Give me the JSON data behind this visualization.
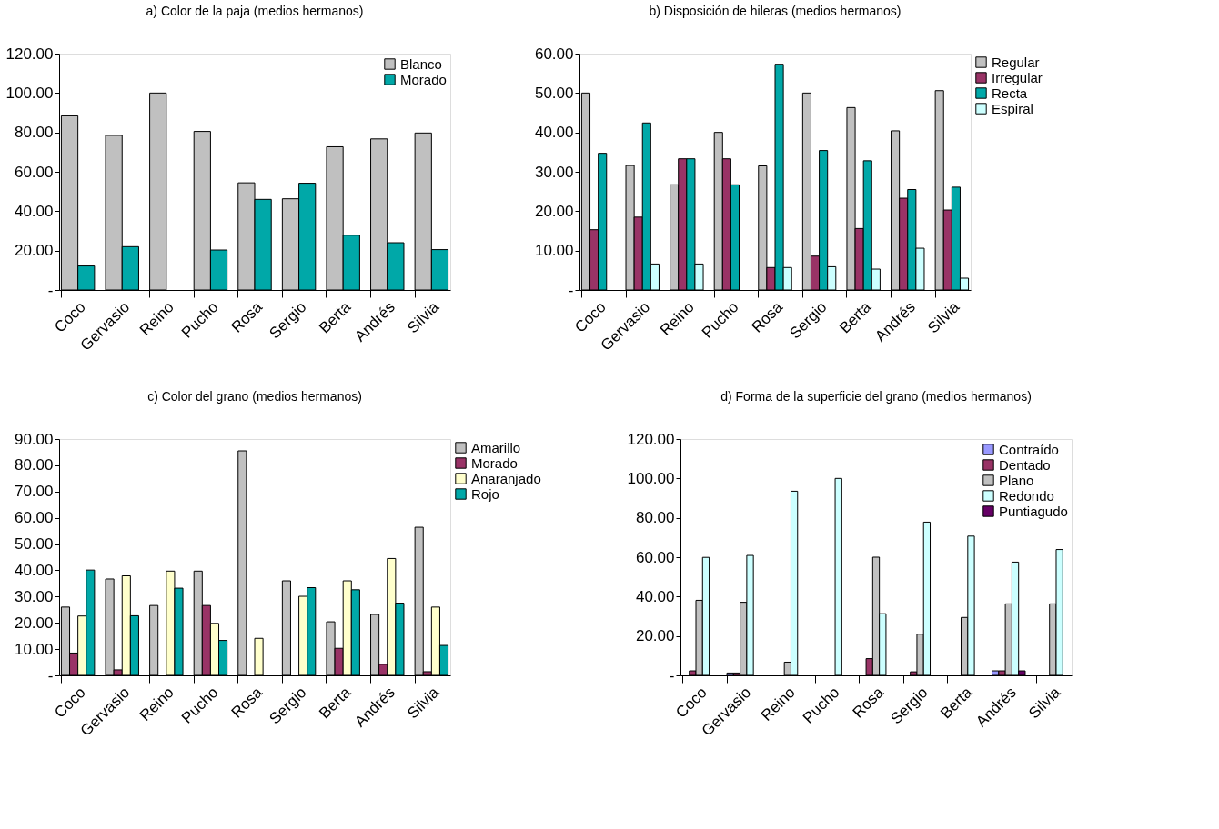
{
  "chart_data": [
    {
      "type": "bar",
      "title": "a) Color de la paja (medios hermanos)",
      "categories": [
        "Coco",
        "Gervasio",
        "Reino",
        "Pucho",
        "Rosa",
        "Sergio",
        "Berta",
        "Andrés",
        "Silvia"
      ],
      "ylim": [
        0,
        120
      ],
      "yticks": [
        {
          "value": 0,
          "label": "-"
        },
        {
          "value": 20,
          "label": "20.00"
        },
        {
          "value": 40,
          "label": "40.00"
        },
        {
          "value": 60,
          "label": "60.00"
        },
        {
          "value": 80,
          "label": "80.00"
        },
        {
          "value": 100,
          "label": "100.00"
        },
        {
          "value": 120,
          "label": "120.00"
        }
      ],
      "legend": "top right",
      "grid": false,
      "series": [
        {
          "name": "Blanco",
          "color": "#c0c0c0",
          "values": [
            88.4,
            78.5,
            100,
            80.5,
            54.4,
            46.3,
            72.7,
            76.7,
            79.7
          ]
        },
        {
          "name": "Morado",
          "color": "#00a8a8",
          "values": [
            12.2,
            22,
            0,
            20.3,
            46,
            54.2,
            27.8,
            24,
            20.5
          ]
        }
      ]
    },
    {
      "type": "bar",
      "title": "b) Disposición de hileras (medios hermanos)",
      "categories": [
        "Coco",
        "Gervasio",
        "Reino",
        "Pucho",
        "Rosa",
        "Sergio",
        "Berta",
        "Andrés",
        "Silvia"
      ],
      "ylim": [
        0,
        60
      ],
      "yticks": [
        {
          "value": 0,
          "label": "-"
        },
        {
          "value": 10,
          "label": "10.00"
        },
        {
          "value": 20,
          "label": "20.00"
        },
        {
          "value": 30,
          "label": "30.00"
        },
        {
          "value": 40,
          "label": "40.00"
        },
        {
          "value": 50,
          "label": "50.00"
        },
        {
          "value": 60,
          "label": "60.00"
        }
      ],
      "legend": "right",
      "grid": false,
      "series": [
        {
          "name": "Regular",
          "color": "#c0c0c0",
          "values": [
            50,
            31.6,
            26.7,
            40,
            31.5,
            50,
            46.3,
            40.4,
            50.6
          ]
        },
        {
          "name": "Irregular",
          "color": "#993366",
          "values": [
            15.3,
            18.5,
            33.3,
            33.3,
            5.7,
            8.6,
            15.6,
            23.3,
            20.3
          ]
        },
        {
          "name": "Recta",
          "color": "#00a8a8",
          "values": [
            34.7,
            42.4,
            33.3,
            26.7,
            57.3,
            35.4,
            32.8,
            25.5,
            26.1
          ]
        },
        {
          "name": "Espiral",
          "color": "#ccffff",
          "values": [
            0,
            6.6,
            6.6,
            0,
            5.7,
            5.9,
            5.3,
            10.6,
            3
          ]
        }
      ]
    },
    {
      "type": "bar",
      "title": "c) Color del grano (medios hermanos)",
      "categories": [
        "Coco",
        "Gervasio",
        "Reino",
        "Pucho",
        "Rosa",
        "Sergio",
        "Berta",
        "Andrés",
        "Silvia"
      ],
      "ylim": [
        0,
        90
      ],
      "yticks": [
        {
          "value": 0,
          "label": "-"
        },
        {
          "value": 10,
          "label": "10.00"
        },
        {
          "value": 20,
          "label": "20.00"
        },
        {
          "value": 30,
          "label": "30.00"
        },
        {
          "value": 40,
          "label": "40.00"
        },
        {
          "value": 50,
          "label": "50.00"
        },
        {
          "value": 60,
          "label": "60.00"
        },
        {
          "value": 70,
          "label": "70.00"
        },
        {
          "value": 80,
          "label": "80.00"
        },
        {
          "value": 90,
          "label": "90.00"
        }
      ],
      "legend": "right",
      "grid": false,
      "series": [
        {
          "name": "Amarillo",
          "color": "#c0c0c0",
          "values": [
            26,
            36.7,
            26.6,
            39.7,
            85.5,
            36,
            20.4,
            23.2,
            56.4
          ]
        },
        {
          "name": "Morado",
          "color": "#993366",
          "values": [
            8.5,
            2.1,
            0,
            26.6,
            0,
            0,
            10.3,
            4.2,
            1.4
          ]
        },
        {
          "name": "Anaranjado",
          "color": "#ffffcc",
          "values": [
            22.6,
            37.9,
            39.7,
            19.8,
            14.1,
            30.1,
            36,
            44.5,
            26
          ]
        },
        {
          "name": "Rojo",
          "color": "#00a8a8",
          "values": [
            40.1,
            22.7,
            33.2,
            13.3,
            0,
            33.4,
            32.6,
            27.5,
            11.4
          ]
        }
      ]
    },
    {
      "type": "bar",
      "title": "d) Forma de la superficie del grano (medios hermanos)",
      "categories": [
        "Coco",
        "Gervasio",
        "Reino",
        "Pucho",
        "Rosa",
        "Sergio",
        "Berta",
        "Andrés",
        "Silvia"
      ],
      "ylim": [
        0,
        120
      ],
      "yticks": [
        {
          "value": 0,
          "label": "-"
        },
        {
          "value": 20,
          "label": "20.00"
        },
        {
          "value": 40,
          "label": "40.00"
        },
        {
          "value": 60,
          "label": "60.00"
        },
        {
          "value": 80,
          "label": "80.00"
        },
        {
          "value": 100,
          "label": "100.00"
        },
        {
          "value": 120,
          "label": "120.00"
        }
      ],
      "legend": "top right",
      "grid": false,
      "series": [
        {
          "name": "Contraído",
          "color": "#9999ff",
          "values": [
            0,
            1.2,
            0,
            0,
            0,
            0,
            0,
            2.3,
            0
          ]
        },
        {
          "name": "Dentado",
          "color": "#993366",
          "values": [
            2.3,
            1.2,
            0,
            0,
            8.5,
            1.8,
            0,
            2.3,
            0
          ]
        },
        {
          "name": "Plano",
          "color": "#c0c0c0",
          "values": [
            38.1,
            37.1,
            6.7,
            0,
            60,
            20.9,
            29.4,
            36.3,
            36.3
          ]
        },
        {
          "name": "Redondo",
          "color": "#ccffff",
          "values": [
            59.9,
            60.9,
            93.5,
            100,
            31.3,
            77.8,
            70.7,
            57.5,
            63.9
          ]
        },
        {
          "name": "Puntiagudo",
          "color": "#660066",
          "values": [
            0,
            0,
            0,
            0,
            0,
            0,
            0,
            2.3,
            0
          ]
        }
      ]
    }
  ]
}
